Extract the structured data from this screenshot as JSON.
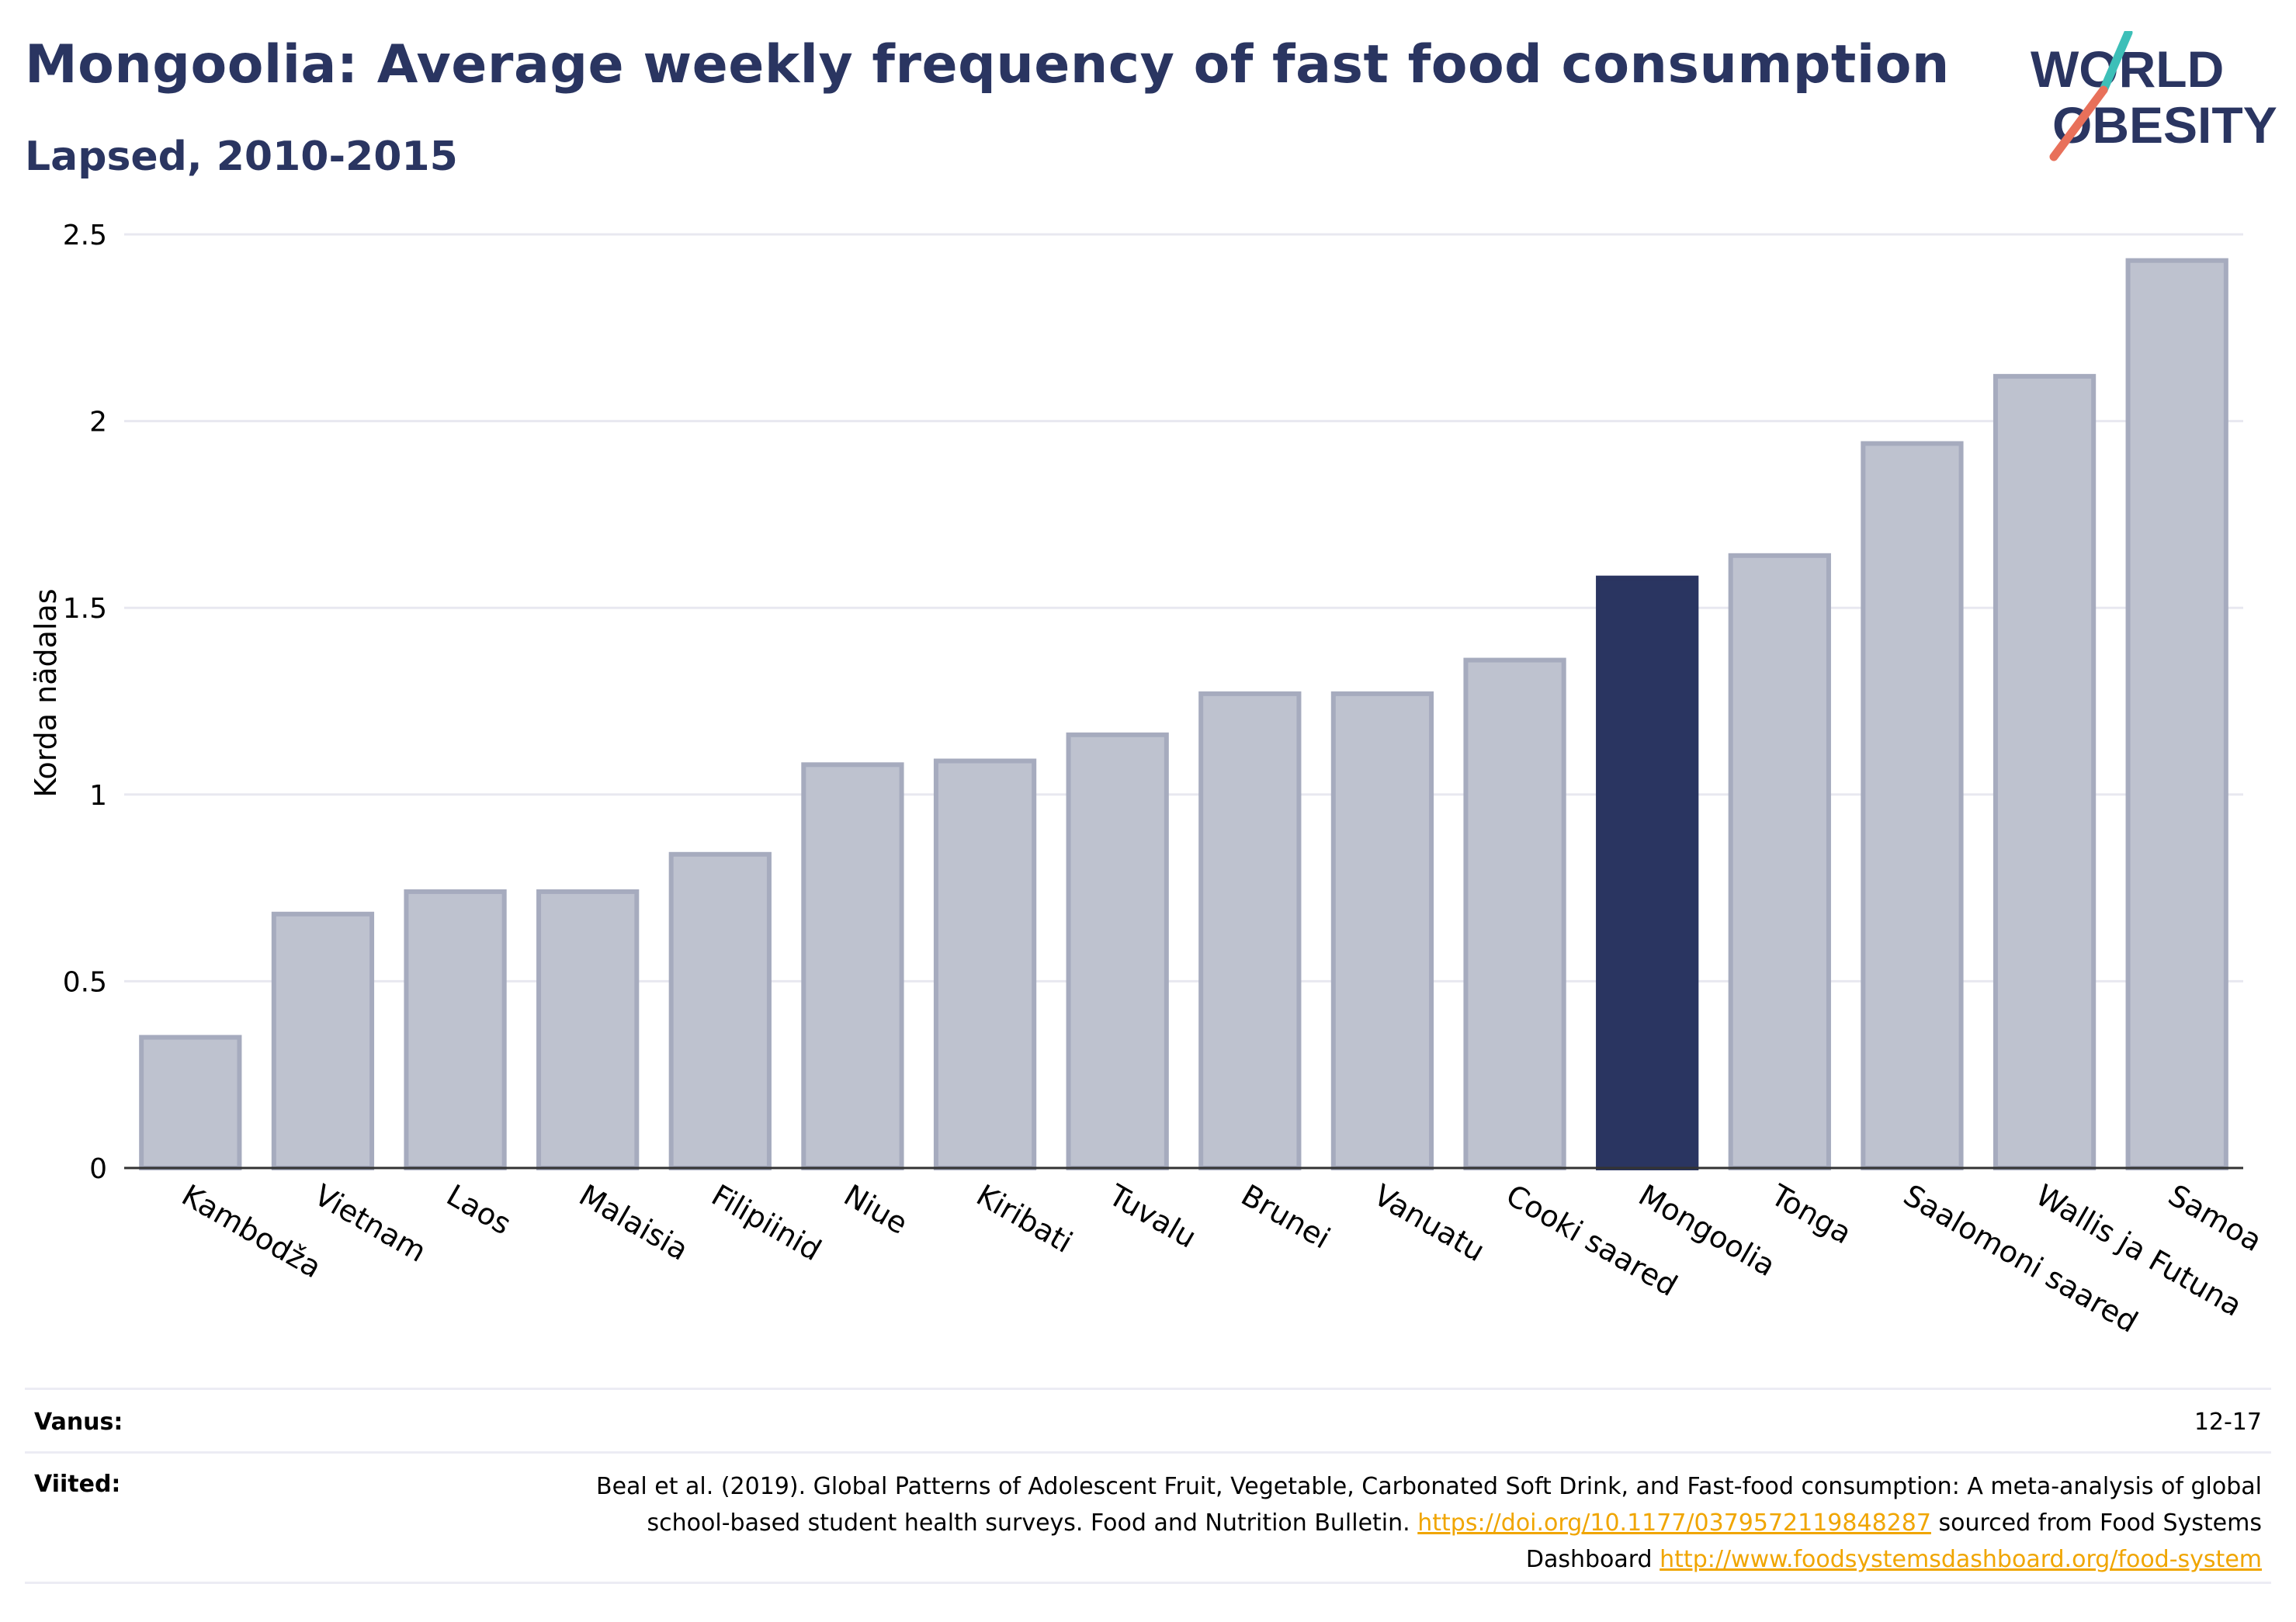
{
  "header": {
    "title": "Mongoolia: Average weekly frequency of fast food consumption",
    "subtitle": "Lapsed, 2010-2015"
  },
  "logo": {
    "line1": "WORLD",
    "line2": "OBESITY"
  },
  "colors": {
    "title": "#2a3561",
    "bar_default": "#bec2cf",
    "bar_default_stroke": "#a6abbe",
    "bar_highlight": "#2a3561",
    "grid": "#e8e8f0",
    "link": "#f0a500",
    "logo_teal": "#3dbfb8",
    "logo_red": "#e8705a"
  },
  "chart_data": {
    "type": "bar",
    "ylabel": "Korda nädalas",
    "ylim": [
      0,
      2.5
    ],
    "yticks": [
      0,
      0.5,
      1,
      1.5,
      2,
      2.5
    ],
    "ytick_labels": [
      "0",
      "0.5",
      "1",
      "1.5",
      "2",
      "2.5"
    ],
    "grid": true,
    "categories": [
      "Kambodža",
      "Vietnam",
      "Laos",
      "Malaisia",
      "Filipiinid",
      "Niue",
      "Kiribati",
      "Tuvalu",
      "Brunei",
      "Vanuatu",
      "Cooki saared",
      "Mongoolia",
      "Tonga",
      "Saalomoni saared",
      "Wallis ja Futuna",
      "Samoa"
    ],
    "values": [
      0.35,
      0.68,
      0.74,
      0.74,
      0.84,
      1.08,
      1.09,
      1.16,
      1.27,
      1.27,
      1.36,
      1.58,
      1.64,
      1.94,
      2.12,
      2.43
    ],
    "highlight": "Mongoolia"
  },
  "footer": {
    "age_label": "Vanus:",
    "age_value": "12-17",
    "refs_label": "Viited:",
    "refs_text1": "Beal et al. (2019). Global Patterns of Adolescent Fruit, Vegetable, Carbonated Soft Drink, and Fast-food consumption: A meta-analysis of global school-based student health surveys. Food and Nutrition Bulletin.",
    "refs_link1": "https://doi.org/10.1177/0379572119848287",
    "refs_text2": "sourced from Food Systems Dashboard",
    "refs_link2": "http://www.foodsystemsdashboard.org/food-system"
  }
}
